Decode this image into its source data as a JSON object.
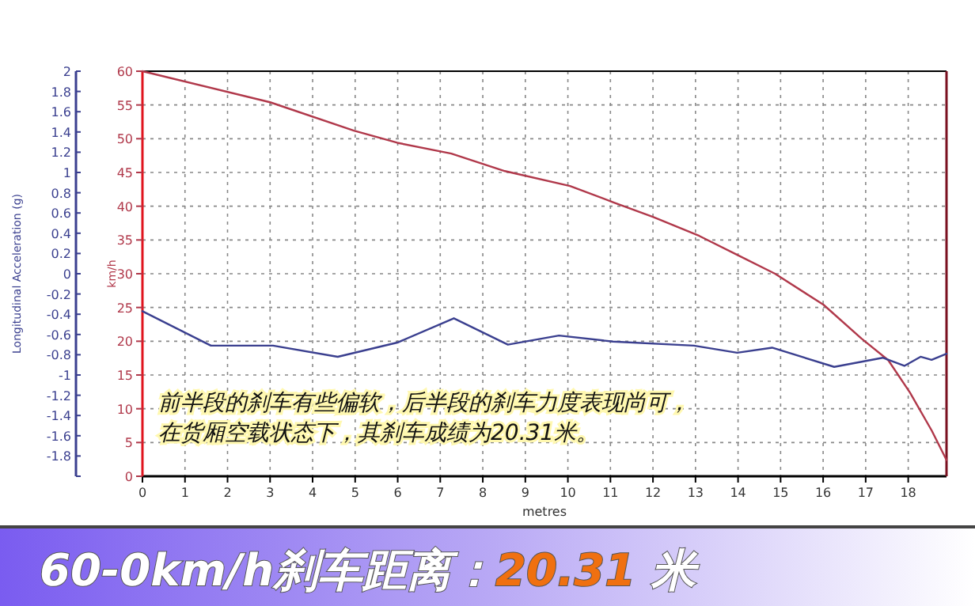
{
  "chart_data": {
    "type": "line",
    "title": "60-0km/h刹车距离：20.31 米",
    "xlabel": "metres",
    "ylabel": "km/h",
    "y2label": "Longitudinal Acceleration (g)",
    "annotations": [
      "前半段的刹车有些偏软，后半段的刹车力度表现尚可，",
      "在货厢空载状态下，其刹车成绩为20.31米。"
    ],
    "xlim": [
      0,
      18.9
    ],
    "xticks": [
      0,
      1,
      2,
      3,
      4,
      5,
      6,
      7,
      8,
      9,
      10,
      11,
      12,
      13,
      14,
      15,
      16,
      17,
      18
    ],
    "ylim": [
      0,
      60
    ],
    "yticks": [
      0,
      5,
      10,
      15,
      20,
      25,
      30,
      35,
      40,
      45,
      50,
      55,
      60
    ],
    "y2lim": [
      -2,
      2
    ],
    "y2ticks": [
      {
        "value": -2,
        "label": null
      },
      -1.8,
      -1.6,
      -1.4,
      -1.2,
      -1,
      -0.8,
      -0.6,
      -0.4,
      -0.2,
      0,
      0.2,
      0.4,
      0.6,
      0.8,
      1,
      1.2,
      1.4,
      1.6,
      1.8,
      2
    ],
    "grid": true,
    "series": [
      {
        "color": "#b0384a",
        "x": [
          0,
          3.0,
          4.97,
          5.99,
          7.26,
          8.52,
          10.05,
          11.06,
          12.01,
          13.09,
          13.98,
          14.87,
          16.01,
          16.9,
          17.53,
          18.04,
          18.55,
          18.9
        ],
        "values": [
          60,
          55.4,
          51.2,
          49.4,
          47.8,
          45.2,
          43.0,
          40.6,
          38.4,
          35.6,
          32.8,
          30,
          25.4,
          20.4,
          17.2,
          12.4,
          6.8,
          2.4
        ]
      },
      {
        "color": "#3a3f8f",
        "axis": "y2",
        "x": [
          0,
          1.61,
          3.07,
          4.59,
          5.99,
          7.32,
          8.59,
          9.79,
          11.06,
          12.96,
          13.98,
          14.8,
          16.26,
          17.4,
          17.91,
          18.29,
          18.55,
          18.9
        ],
        "values": [
          -0.37,
          -0.71,
          -0.71,
          -0.82,
          -0.68,
          -0.44,
          -0.7,
          -0.61,
          -0.67,
          -0.71,
          -0.78,
          -0.73,
          -0.92,
          -0.83,
          -0.91,
          -0.82,
          -0.85,
          -0.79
        ]
      }
    ]
  }
}
